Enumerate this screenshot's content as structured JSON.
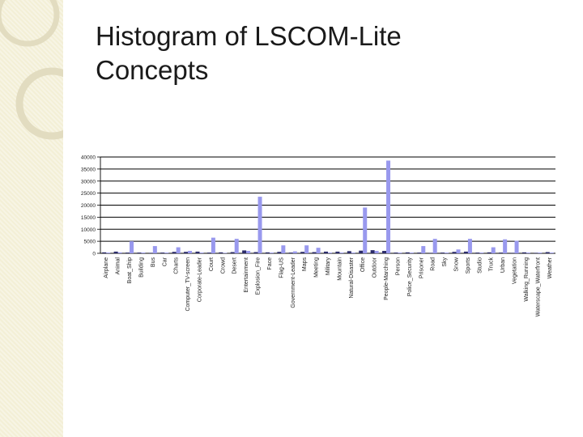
{
  "slide": {
    "title_line1": "Histogram of LSCOM-Lite",
    "title_line2": "Concepts",
    "sidebar_color": "#f3efd6",
    "ring_color": "#e2dcc0"
  },
  "chart_data": {
    "type": "bar",
    "title": "",
    "xlabel": "",
    "ylabel": "",
    "ylim": [
      0,
      40000
    ],
    "y_ticks": [
      "0",
      "5000",
      "10000",
      "15000",
      "20000",
      "25000",
      "30000",
      "35000",
      "40000"
    ],
    "categories": [
      "Airplane",
      "Animal",
      "Boat_Ship",
      "Building",
      "Bus",
      "Car",
      "Charts",
      "Computer_TV-screen",
      "Corporate-Leader",
      "Court",
      "Crowd",
      "Desert",
      "Entertainment",
      "Explosion_Fire",
      "Face",
      "Flag-US",
      "Government-Leader",
      "Maps",
      "Meeting",
      "Military",
      "Mountain",
      "Natural-Disaster",
      "Office",
      "Outdoor",
      "People-Marching",
      "Person",
      "Police_Security",
      "Prisoner",
      "Road",
      "Sky",
      "Snow",
      "Sports",
      "Studio",
      "Truck",
      "Urban",
      "Vegetation",
      "Walking_Running",
      "Waterscape_Waterfront",
      "Weather"
    ],
    "series": [
      {
        "color": "#2b2b6a",
        "values": [
          400,
          700,
          300,
          300,
          200,
          300,
          600,
          600,
          700,
          300,
          400,
          500,
          1200,
          500,
          400,
          600,
          300,
          600,
          500,
          700,
          700,
          900,
          1100,
          1300,
          1000,
          300,
          400,
          300,
          200,
          300,
          600,
          700,
          300,
          400,
          300,
          200,
          400,
          200,
          500
        ]
      },
      {
        "color": "#9999ee",
        "values": [
          300,
          400,
          5000,
          300,
          3000,
          300,
          2500,
          1000,
          300,
          6500,
          200,
          6000,
          1000,
          23500,
          300,
          3300,
          800,
          3300,
          2300,
          300,
          300,
          300,
          19000,
          1000,
          38500,
          300,
          300,
          3000,
          6000,
          300,
          1600,
          6000,
          300,
          2500,
          5800,
          5200,
          300,
          300,
          300
        ]
      }
    ],
    "grid": "horizontal",
    "legend": "none"
  }
}
